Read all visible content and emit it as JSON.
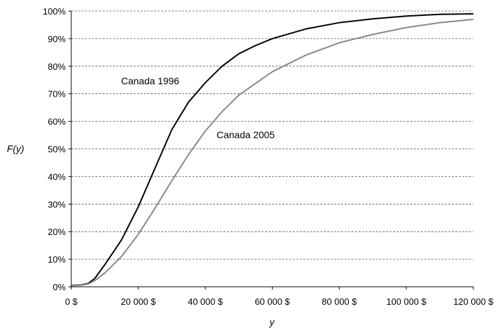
{
  "chart_data": {
    "type": "line",
    "xlabel": "y",
    "ylabel": "F(y)",
    "xlim": [
      0,
      120000
    ],
    "ylim": [
      0,
      1
    ],
    "x_ticks": [
      0,
      20000,
      40000,
      60000,
      80000,
      100000,
      120000
    ],
    "x_tick_labels": [
      "0 $",
      "20 000 $",
      "40 000 $",
      "60 000 $",
      "80 000 $",
      "100 000 $",
      "120 000 $"
    ],
    "y_ticks": [
      0,
      0.1,
      0.2,
      0.3,
      0.4,
      0.5,
      0.6,
      0.7,
      0.8,
      0.9,
      1.0
    ],
    "y_tick_labels": [
      "0%",
      "10%",
      "20%",
      "30%",
      "40%",
      "50%",
      "60%",
      "70%",
      "80%",
      "90%",
      "100%"
    ],
    "grid": "horizontal dashed",
    "series": [
      {
        "name": "Canada 1996",
        "color": "#000000",
        "points": [
          [
            0,
            0.005
          ],
          [
            3000,
            0.007
          ],
          [
            5000,
            0.012
          ],
          [
            7000,
            0.03
          ],
          [
            10000,
            0.08
          ],
          [
            15000,
            0.17
          ],
          [
            20000,
            0.29
          ],
          [
            25000,
            0.43
          ],
          [
            30000,
            0.57
          ],
          [
            35000,
            0.67
          ],
          [
            40000,
            0.74
          ],
          [
            45000,
            0.8
          ],
          [
            50000,
            0.845
          ],
          [
            55000,
            0.875
          ],
          [
            60000,
            0.9
          ],
          [
            70000,
            0.935
          ],
          [
            80000,
            0.958
          ],
          [
            90000,
            0.972
          ],
          [
            100000,
            0.982
          ],
          [
            110000,
            0.988
          ],
          [
            120000,
            0.99
          ]
        ]
      },
      {
        "name": "Canada 2005",
        "color": "#888888",
        "points": [
          [
            0,
            0.004
          ],
          [
            3000,
            0.006
          ],
          [
            5000,
            0.01
          ],
          [
            7000,
            0.022
          ],
          [
            10000,
            0.05
          ],
          [
            15000,
            0.11
          ],
          [
            20000,
            0.19
          ],
          [
            25000,
            0.285
          ],
          [
            30000,
            0.385
          ],
          [
            35000,
            0.48
          ],
          [
            40000,
            0.565
          ],
          [
            45000,
            0.635
          ],
          [
            50000,
            0.695
          ],
          [
            60000,
            0.78
          ],
          [
            70000,
            0.84
          ],
          [
            80000,
            0.885
          ],
          [
            90000,
            0.915
          ],
          [
            100000,
            0.94
          ],
          [
            110000,
            0.958
          ],
          [
            120000,
            0.97
          ]
        ]
      }
    ]
  }
}
